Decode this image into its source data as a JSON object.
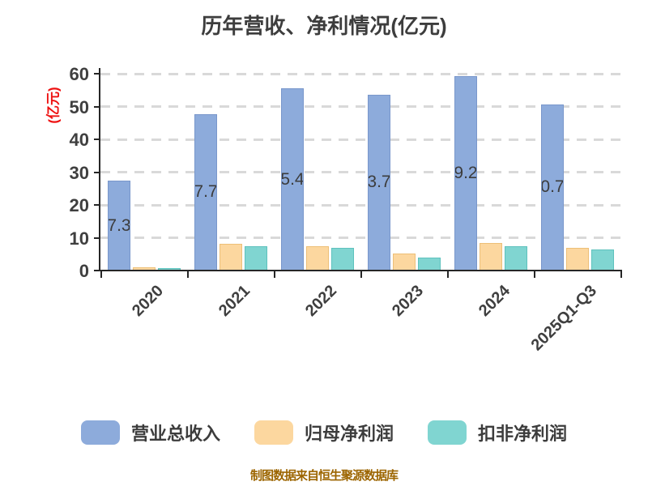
{
  "title": "历年营收、净利情况(亿元)",
  "y_axis": {
    "label": "(亿元)",
    "label_color": "#EE1111",
    "tick_values": [
      0,
      10,
      20,
      30,
      40,
      50,
      60
    ],
    "max": 60
  },
  "x_axis": {
    "categories": [
      "2020",
      "2021",
      "2022",
      "2023",
      "2024",
      "2025Q1-Q3"
    ]
  },
  "chart_data": {
    "type": "bar",
    "title": "历年营收、净利情况(亿元)",
    "xlabel": "",
    "ylabel": "(亿元)",
    "ylim": [
      0,
      60
    ],
    "grid": "horizontal-dashed",
    "legend_position": "bottom",
    "categories": [
      "2020",
      "2021",
      "2022",
      "2023",
      "2024",
      "2025Q1-Q3"
    ],
    "series": [
      {
        "name": "营业总收入",
        "color": "#8DABDB",
        "edge_color": "#7997CB",
        "values": [
          27.38,
          47.77,
          55.44,
          53.7,
          59.26,
          50.71
        ],
        "value_labels_shown": true
      },
      {
        "name": "归母净利润",
        "color": "#FCD79F",
        "edge_color": "#EDBF77",
        "values": [
          1.0,
          8.1,
          7.5,
          5.1,
          8.3,
          7.0
        ],
        "value_labels_shown": false
      },
      {
        "name": "扣非净利润",
        "color": "#80D5D1",
        "edge_color": "#5EC2BD",
        "values": [
          0.8,
          7.3,
          7.0,
          4.0,
          7.5,
          6.3
        ],
        "value_labels_shown": false
      }
    ]
  },
  "legend": {
    "items": [
      {
        "label": "营业总收入",
        "color": "#8DABDB"
      },
      {
        "label": "归母净利润",
        "color": "#FCD79F"
      },
      {
        "label": "扣非净利润",
        "color": "#80D5D1"
      }
    ]
  },
  "footer": {
    "text": "制图数据来自恒生聚源数据库"
  },
  "colors": {
    "title_text": "#3D3D3D",
    "tick_text": "#3F3F3F",
    "bar_label_text": "#3C3C3C",
    "axis": "#262626",
    "gridline": "#D9D9D9",
    "y_unit_label": "#EE1111",
    "footer_text": "#9C6500"
  }
}
